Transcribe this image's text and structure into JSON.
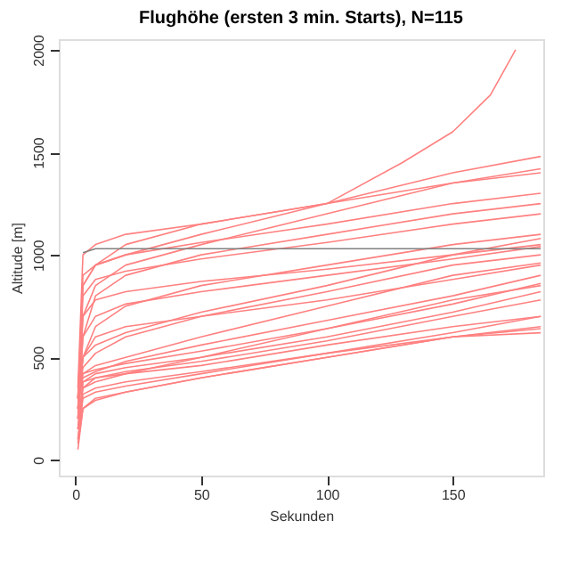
{
  "chart_data": {
    "type": "line",
    "title": "Flughöhe (ersten 3 min. Starts), N=115",
    "xlabel": "Sekunden",
    "ylabel": "Altitude [m]",
    "x": [
      1,
      3,
      8,
      20,
      50,
      100,
      150,
      185
    ],
    "series": [
      {
        "color": "#ff8080",
        "values": [
          150,
          380,
          420,
          450,
          500,
          600,
          720,
          820
        ]
      },
      {
        "color": "#ff8080",
        "values": [
          100,
          300,
          330,
          360,
          420,
          520,
          620,
          700
        ]
      },
      {
        "color": "#ff8080",
        "values": [
          200,
          350,
          400,
          430,
          480,
          580,
          700,
          780
        ]
      },
      {
        "color": "#ff8080",
        "values": [
          80,
          250,
          290,
          330,
          400,
          500,
          600,
          640
        ]
      },
      {
        "color": "#ff8080",
        "values": [
          250,
          420,
          440,
          470,
          530,
          640,
          760,
          860
        ]
      },
      {
        "color": "#ff8080",
        "values": [
          300,
          400,
          430,
          480,
          560,
          680,
          800,
          900
        ]
      },
      {
        "color": "#ff8080",
        "values": [
          200,
          500,
          600,
          650,
          700,
          780,
          880,
          950
        ]
      },
      {
        "color": "#ff8080",
        "values": [
          300,
          700,
          780,
          820,
          870,
          930,
          1000,
          1050
        ]
      },
      {
        "color": "#ff8080",
        "values": [
          200,
          600,
          700,
          760,
          820,
          900,
          980,
          1040
        ]
      },
      {
        "color": "#ff8080",
        "values": [
          250,
          800,
          880,
          920,
          980,
          1060,
          1150,
          1200
        ]
      },
      {
        "color": "#ff8080",
        "values": [
          300,
          850,
          950,
          1000,
          1060,
          1150,
          1250,
          1300
        ]
      },
      {
        "color": "#ff8080",
        "values": [
          300,
          900,
          950,
          1000,
          1100,
          1250,
          1400,
          1480
        ]
      },
      {
        "color": "#ff8080",
        "values": [
          250,
          500,
          650,
          750,
          850,
          950,
          1050,
          1100
        ]
      },
      {
        "color": "#ff8080",
        "values": [
          250,
          450,
          520,
          600,
          700,
          820,
          950,
          1000
        ]
      },
      {
        "color": "#ff8080",
        "values": [
          300,
          420,
          460,
          500,
          600,
          750,
          900,
          960
        ]
      },
      {
        "color": "#ff8080",
        "values": [
          150,
          350,
          380,
          420,
          500,
          640,
          780,
          850
        ]
      },
      {
        "color": "#ff8080",
        "values": [
          200,
          700,
          850,
          950,
          1050,
          1200,
          1350,
          1420
        ]
      },
      {
        "color": "#ff8080",
        "values": [
          250,
          600,
          800,
          900,
          1000,
          1100,
          1200,
          1250
        ]
      },
      {
        "color": "#ff8080",
        "values": [
          300,
          500,
          560,
          620,
          720,
          850,
          1000,
          1080
        ]
      },
      {
        "color": "#ff8080",
        "x": [
          1,
          3,
          8,
          20,
          50,
          100,
          130,
          150,
          165,
          175
        ],
        "values": [
          300,
          850,
          950,
          1050,
          1150,
          1250,
          1450,
          1600,
          1780,
          2000
        ]
      },
      {
        "color": "#ff8080",
        "values": [
          350,
          1000,
          1050,
          1100,
          1150,
          1250,
          1350,
          1400
        ]
      },
      {
        "color": "#ff8080",
        "values": [
          150,
          380,
          400,
          420,
          460,
          560,
          650,
          700
        ]
      },
      {
        "color": "#ff8080",
        "values": [
          100,
          320,
          350,
          380,
          430,
          520,
          600,
          650
        ]
      },
      {
        "color": "#ff8080",
        "values": [
          50,
          250,
          300,
          330,
          400,
          500,
          600,
          620
        ]
      },
      {
        "color": "#808080",
        "x": [
          3,
          8,
          185
        ],
        "values": [
          1010,
          1030,
          1030
        ]
      }
    ],
    "xlim": [
      -6.6,
      186
    ],
    "xticks": [
      0,
      50,
      100,
      150
    ],
    "ylim": [
      -77,
      2052
    ],
    "yticks": [
      0,
      500,
      1000,
      1500,
      2000
    ],
    "grid": false,
    "legend": false,
    "line_style": "solid",
    "marker": "none"
  }
}
